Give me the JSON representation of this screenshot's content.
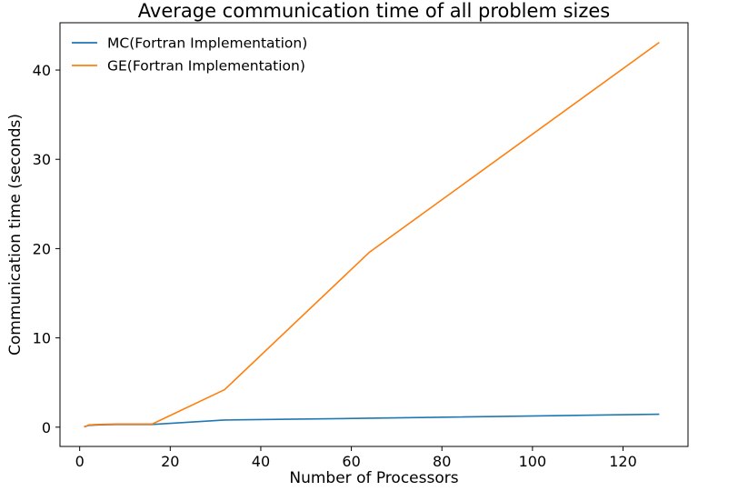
{
  "chart_data": {
    "type": "line",
    "title": "Average communication time of all problem sizes",
    "xlabel": "Number of Processors",
    "ylabel": "Communication time (seconds)",
    "xlim": [
      -4.35,
      134.35
    ],
    "ylim": [
      -2.16,
      45.3
    ],
    "xticks": [
      0,
      20,
      40,
      60,
      80,
      100,
      120
    ],
    "yticks": [
      0,
      10,
      20,
      30,
      40
    ],
    "grid": false,
    "legend_position": "top-left",
    "series": [
      {
        "name": "MC(Fortran Implementation)",
        "color": "#1f77b4",
        "x": [
          1,
          2,
          4,
          8,
          16,
          32,
          64,
          128
        ],
        "y": [
          0.05,
          0.2,
          0.25,
          0.3,
          0.3,
          0.8,
          1.0,
          1.45
        ]
      },
      {
        "name": "GE(Fortran Implementation)",
        "color": "#ff7f0e",
        "x": [
          1,
          2,
          4,
          8,
          16,
          32,
          64,
          128
        ],
        "y": [
          0.0,
          0.25,
          0.3,
          0.35,
          0.35,
          4.2,
          19.6,
          43.1
        ]
      }
    ]
  }
}
